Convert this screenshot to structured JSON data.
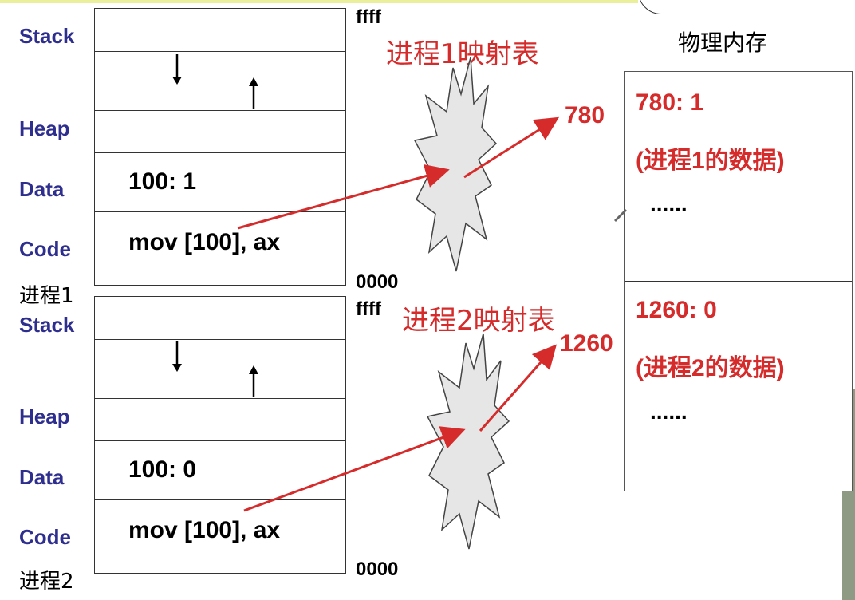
{
  "address_labels": {
    "high": "ffff",
    "low": "0000"
  },
  "process1": {
    "name": "进程1",
    "segments": {
      "stack": "Stack",
      "heap": "Heap",
      "data": "Data",
      "code": "Code"
    },
    "data_cell": "100:  1",
    "code_cell": "mov [100], ax",
    "map_title": "进程1映射表",
    "target": "780"
  },
  "process2": {
    "name": "进程2",
    "segments": {
      "stack": "Stack",
      "heap": "Heap",
      "data": "Data",
      "code": "Code"
    },
    "data_cell": "100:  0",
    "code_cell": "mov [100], ax",
    "map_title": "进程2映射表",
    "target": "1260"
  },
  "physical_memory": {
    "title": "物理内存",
    "block1": {
      "line1": "780:  1",
      "line2": "(进程1的数据)",
      "dots": "......"
    },
    "block2": {
      "line1": "1260:  0",
      "line2": "(进程2的数据)",
      "dots": "......"
    }
  },
  "colors": {
    "accent": "#d52b2b",
    "segment_label": "#2e2e8f"
  }
}
